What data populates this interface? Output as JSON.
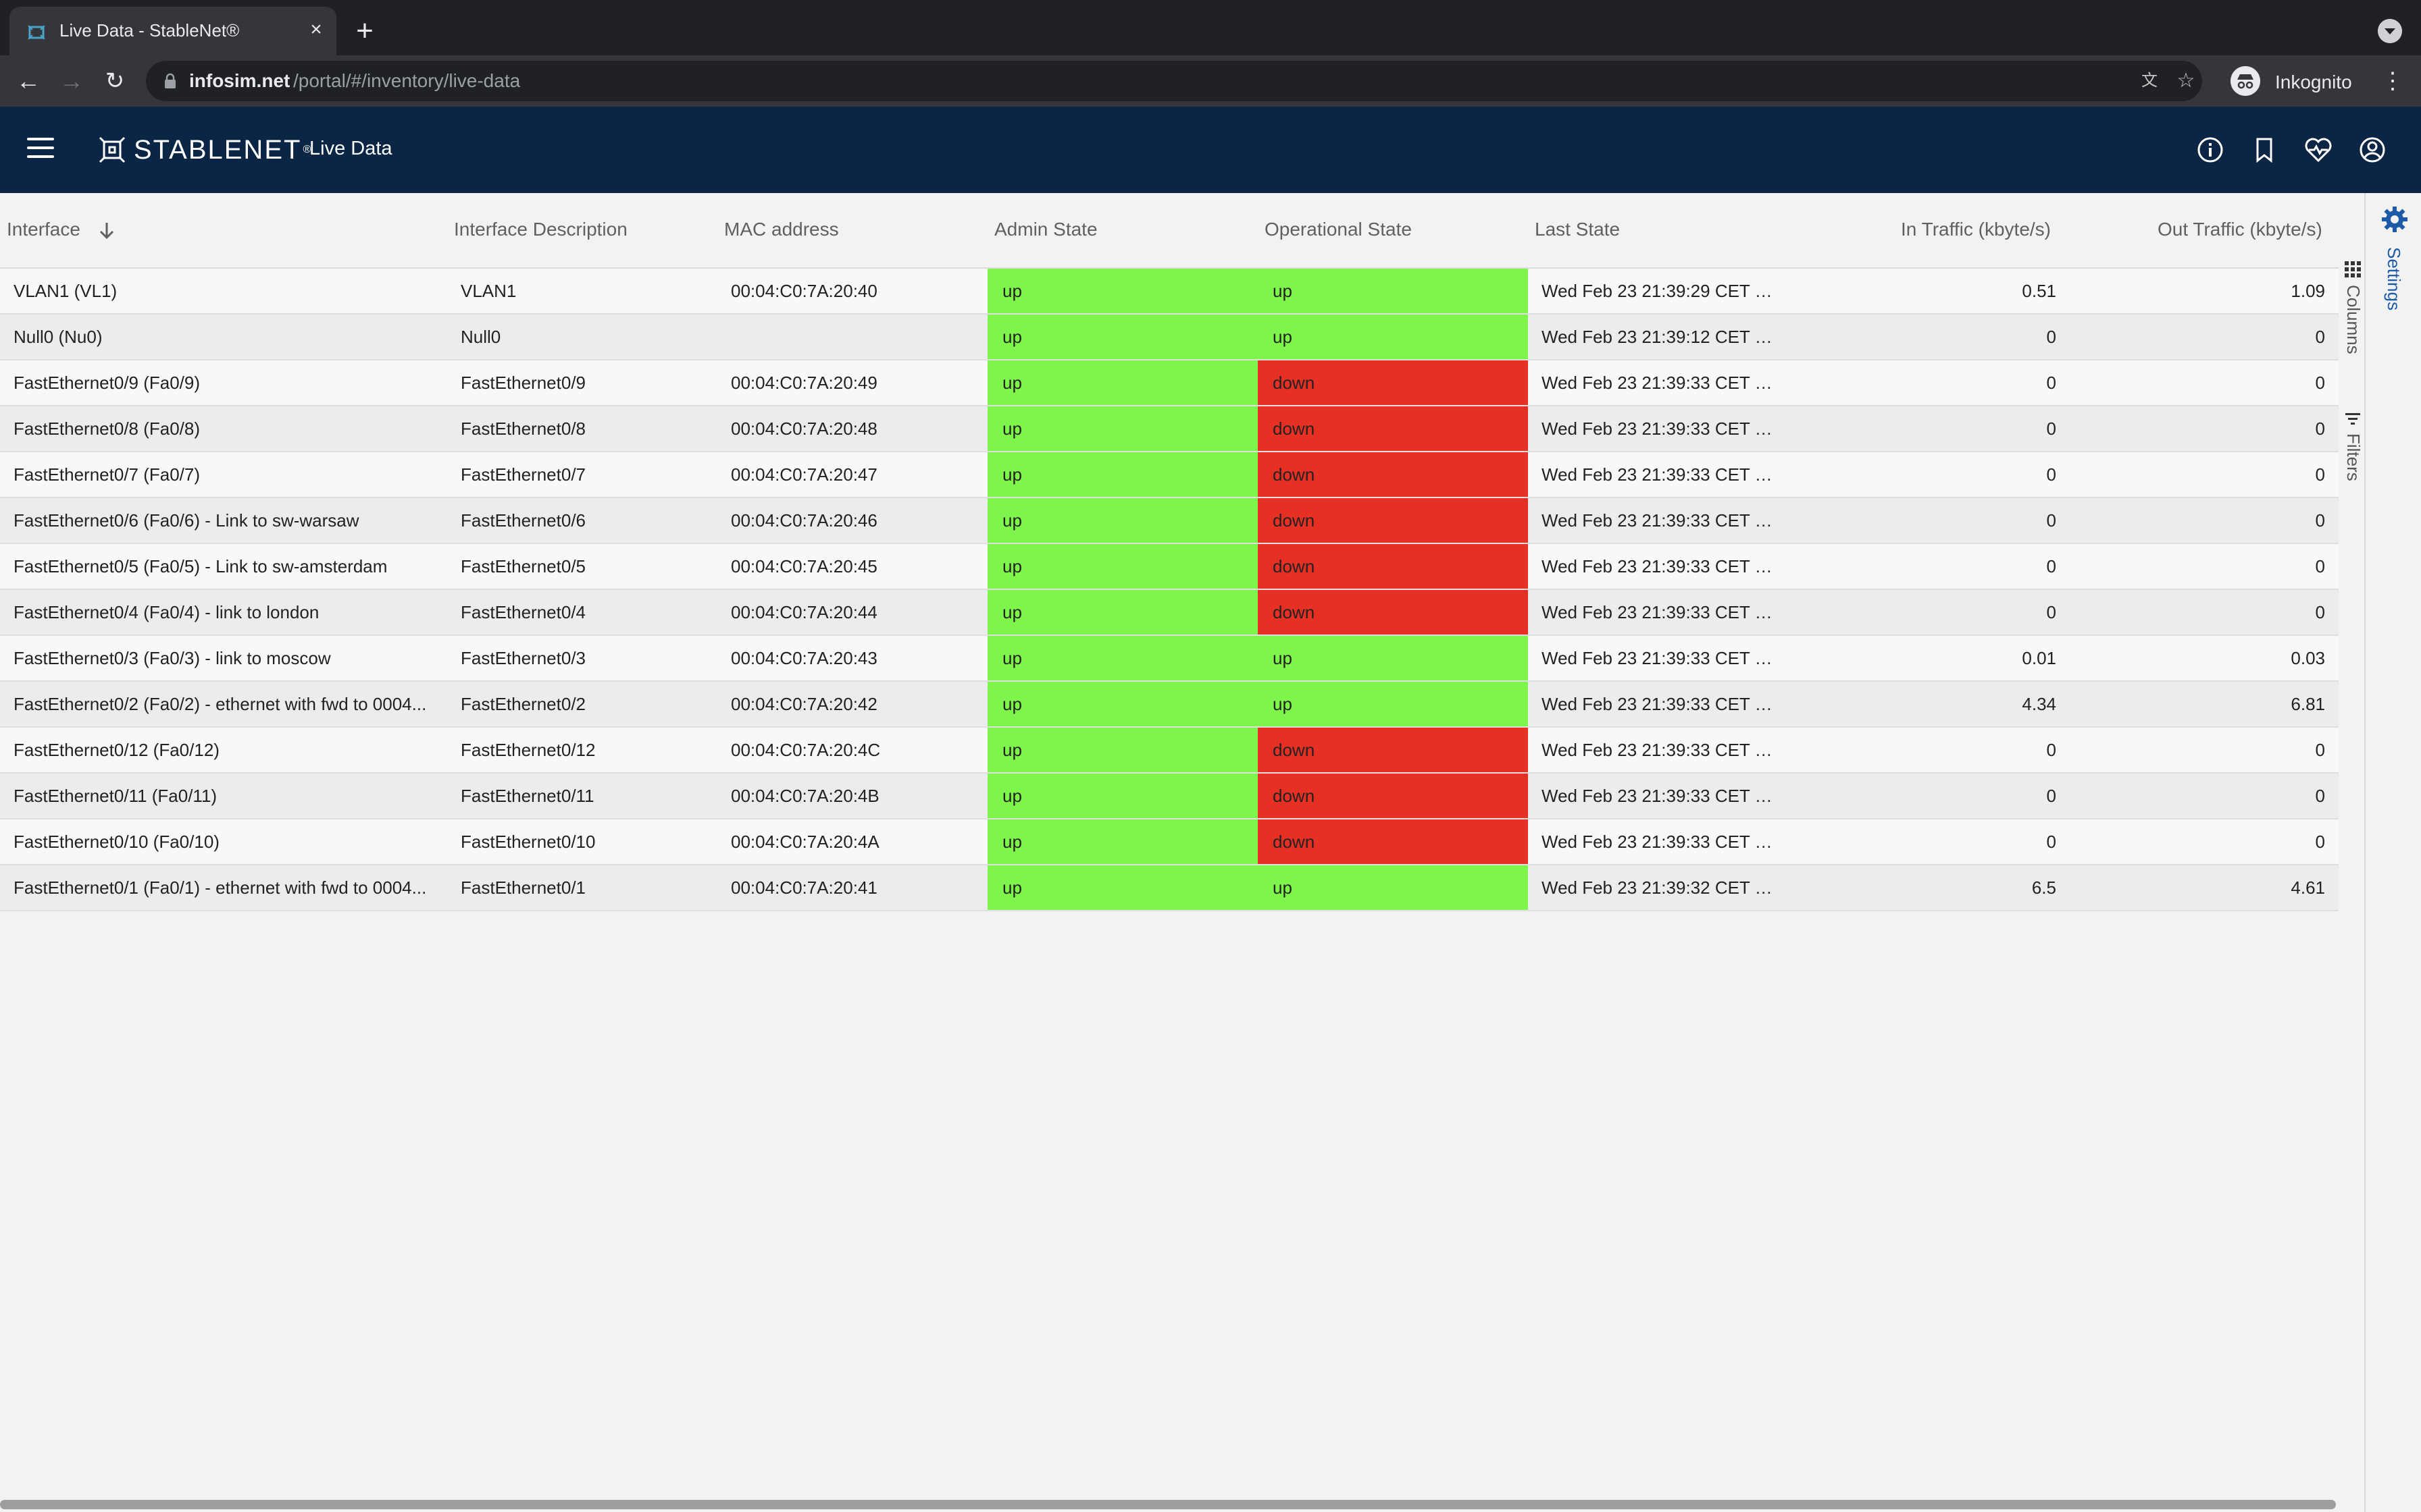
{
  "browser": {
    "tab_title": "Live Data - StableNet®",
    "url_host": "infosim.net",
    "url_path": "/portal/#/inventory/live-data",
    "profile_label": "Inkognito"
  },
  "app": {
    "brand": "STABLENET",
    "brand_mark": "®",
    "page_title": "Live Data"
  },
  "columns": {
    "interface": "Interface",
    "description": "Interface Description",
    "mac": "MAC address",
    "admin": "Admin State",
    "oper": "Operational State",
    "last": "Last State",
    "in_traffic": "In Traffic (kbyte/s)",
    "out_traffic": "Out Traffic (kbyte/s)"
  },
  "rows": [
    {
      "interface": "VLAN1 (VL1)",
      "description": "VLAN1",
      "mac": "00:04:C0:7A:20:40",
      "admin": "up",
      "oper": "up",
      "last": "Wed Feb 23 21:39:29 CET 20...",
      "in": "0.51",
      "out": "1.09"
    },
    {
      "interface": "Null0 (Nu0)",
      "description": "Null0",
      "mac": "",
      "admin": "up",
      "oper": "up",
      "last": "Wed Feb 23 21:39:12 CET 20...",
      "in": "0",
      "out": "0"
    },
    {
      "interface": "FastEthernet0/9 (Fa0/9)",
      "description": "FastEthernet0/9",
      "mac": "00:04:C0:7A:20:49",
      "admin": "up",
      "oper": "down",
      "last": "Wed Feb 23 21:39:33 CET 20...",
      "in": "0",
      "out": "0"
    },
    {
      "interface": "FastEthernet0/8 (Fa0/8)",
      "description": "FastEthernet0/8",
      "mac": "00:04:C0:7A:20:48",
      "admin": "up",
      "oper": "down",
      "last": "Wed Feb 23 21:39:33 CET 20...",
      "in": "0",
      "out": "0"
    },
    {
      "interface": "FastEthernet0/7 (Fa0/7)",
      "description": "FastEthernet0/7",
      "mac": "00:04:C0:7A:20:47",
      "admin": "up",
      "oper": "down",
      "last": "Wed Feb 23 21:39:33 CET 20...",
      "in": "0",
      "out": "0"
    },
    {
      "interface": "FastEthernet0/6 (Fa0/6) - Link to sw-warsaw",
      "description": "FastEthernet0/6",
      "mac": "00:04:C0:7A:20:46",
      "admin": "up",
      "oper": "down",
      "last": "Wed Feb 23 21:39:33 CET 20...",
      "in": "0",
      "out": "0"
    },
    {
      "interface": "FastEthernet0/5 (Fa0/5) - Link to sw-amsterdam",
      "description": "FastEthernet0/5",
      "mac": "00:04:C0:7A:20:45",
      "admin": "up",
      "oper": "down",
      "last": "Wed Feb 23 21:39:33 CET 20...",
      "in": "0",
      "out": "0"
    },
    {
      "interface": "FastEthernet0/4 (Fa0/4) - link to london",
      "description": "FastEthernet0/4",
      "mac": "00:04:C0:7A:20:44",
      "admin": "up",
      "oper": "down",
      "last": "Wed Feb 23 21:39:33 CET 20...",
      "in": "0",
      "out": "0"
    },
    {
      "interface": "FastEthernet0/3 (Fa0/3) - link to moscow",
      "description": "FastEthernet0/3",
      "mac": "00:04:C0:7A:20:43",
      "admin": "up",
      "oper": "up",
      "last": "Wed Feb 23 21:39:33 CET 20...",
      "in": "0.01",
      "out": "0.03"
    },
    {
      "interface": "FastEthernet0/2 (Fa0/2) - ethernet with fwd to 0004...",
      "description": "FastEthernet0/2",
      "mac": "00:04:C0:7A:20:42",
      "admin": "up",
      "oper": "up",
      "last": "Wed Feb 23 21:39:33 CET 20...",
      "in": "4.34",
      "out": "6.81"
    },
    {
      "interface": "FastEthernet0/12 (Fa0/12)",
      "description": "FastEthernet0/12",
      "mac": "00:04:C0:7A:20:4C",
      "admin": "up",
      "oper": "down",
      "last": "Wed Feb 23 21:39:33 CET 20...",
      "in": "0",
      "out": "0"
    },
    {
      "interface": "FastEthernet0/11 (Fa0/11)",
      "description": "FastEthernet0/11",
      "mac": "00:04:C0:7A:20:4B",
      "admin": "up",
      "oper": "down",
      "last": "Wed Feb 23 21:39:33 CET 20...",
      "in": "0",
      "out": "0"
    },
    {
      "interface": "FastEthernet0/10 (Fa0/10)",
      "description": "FastEthernet0/10",
      "mac": "00:04:C0:7A:20:4A",
      "admin": "up",
      "oper": "down",
      "last": "Wed Feb 23 21:39:33 CET 20...",
      "in": "0",
      "out": "0"
    },
    {
      "interface": "FastEthernet0/1 (Fa0/1) - ethernet with fwd to 0004...",
      "description": "FastEthernet0/1",
      "mac": "00:04:C0:7A:20:41",
      "admin": "up",
      "oper": "up",
      "last": "Wed Feb 23 21:39:32 CET 20...",
      "in": "6.5",
      "out": "4.61"
    }
  ],
  "side_panel": {
    "settings_label": "Settings",
    "columns_label": "Columns",
    "filters_label": "Filters"
  },
  "colors": {
    "header_bg": "#0b2645",
    "state_up": "#7ef54a",
    "state_down": "#e63024",
    "settings_accent": "#1d5ba8"
  }
}
